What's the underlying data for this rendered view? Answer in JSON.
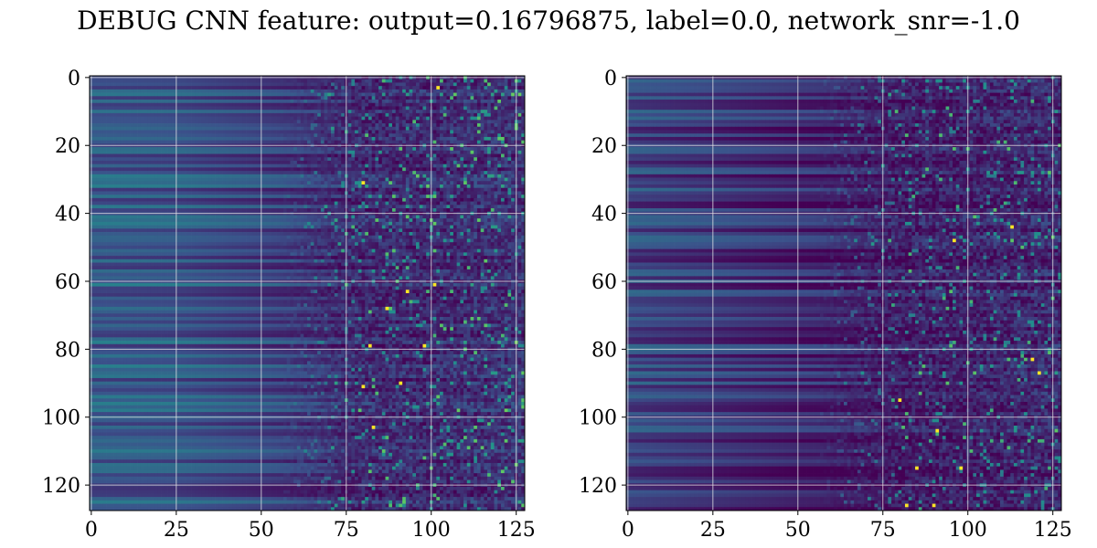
{
  "figure": {
    "title": "DEBUG CNN feature: output=0.16796875, label=0.0, network_snr=-1.0"
  },
  "chart_data": [
    {
      "type": "heatmap",
      "panel": "left",
      "title": "",
      "xlabel": "",
      "ylabel": "",
      "x_range": [
        0,
        127
      ],
      "y_range": [
        0,
        127
      ],
      "y_inverted": true,
      "grid": true,
      "x_ticks": [
        0,
        25,
        50,
        75,
        100,
        125
      ],
      "y_ticks": [
        0,
        20,
        40,
        60,
        80,
        100,
        120
      ],
      "colormap": "viridis",
      "colormap_stops": [
        "#440154",
        "#3b528b",
        "#21918c",
        "#5ec962",
        "#fde725"
      ],
      "column_intensity_profile": [
        {
          "x": 0,
          "value": 0.3
        },
        {
          "x": 25,
          "value": 0.28
        },
        {
          "x": 50,
          "value": 0.22
        },
        {
          "x": 75,
          "value": 0.15
        },
        {
          "x": 100,
          "value": 0.15
        },
        {
          "x": 127,
          "value": 0.18
        }
      ],
      "hot_spots": [
        {
          "x": 102,
          "y": 3
        },
        {
          "x": 80,
          "y": 31
        },
        {
          "x": 101,
          "y": 61
        },
        {
          "x": 93,
          "y": 63
        },
        {
          "x": 87,
          "y": 68
        },
        {
          "x": 82,
          "y": 79
        },
        {
          "x": 98,
          "y": 79
        },
        {
          "x": 80,
          "y": 91
        },
        {
          "x": 91,
          "y": 90
        },
        {
          "x": 83,
          "y": 103
        }
      ],
      "seed": 11
    },
    {
      "type": "heatmap",
      "panel": "right",
      "title": "",
      "xlabel": "",
      "ylabel": "",
      "x_range": [
        0,
        127
      ],
      "y_range": [
        0,
        127
      ],
      "y_inverted": true,
      "grid": true,
      "x_ticks": [
        0,
        25,
        50,
        75,
        100,
        125
      ],
      "y_ticks": [
        0,
        20,
        40,
        60,
        80,
        100,
        120
      ],
      "colormap": "viridis",
      "colormap_stops": [
        "#440154",
        "#3b528b",
        "#21918c",
        "#5ec962",
        "#fde725"
      ],
      "column_intensity_profile": [
        {
          "x": 0,
          "value": 0.22
        },
        {
          "x": 25,
          "value": 0.17
        },
        {
          "x": 50,
          "value": 0.12
        },
        {
          "x": 75,
          "value": 0.1
        },
        {
          "x": 100,
          "value": 0.12
        },
        {
          "x": 127,
          "value": 0.14
        }
      ],
      "hot_spots": [
        {
          "x": 113,
          "y": 44
        },
        {
          "x": 96,
          "y": 48
        },
        {
          "x": 80,
          "y": 95
        },
        {
          "x": 121,
          "y": 87
        },
        {
          "x": 119,
          "y": 83
        },
        {
          "x": 91,
          "y": 104
        },
        {
          "x": 85,
          "y": 115
        },
        {
          "x": 98,
          "y": 115
        },
        {
          "x": 90,
          "y": 126
        },
        {
          "x": 82,
          "y": 126
        }
      ],
      "seed": 29
    }
  ]
}
